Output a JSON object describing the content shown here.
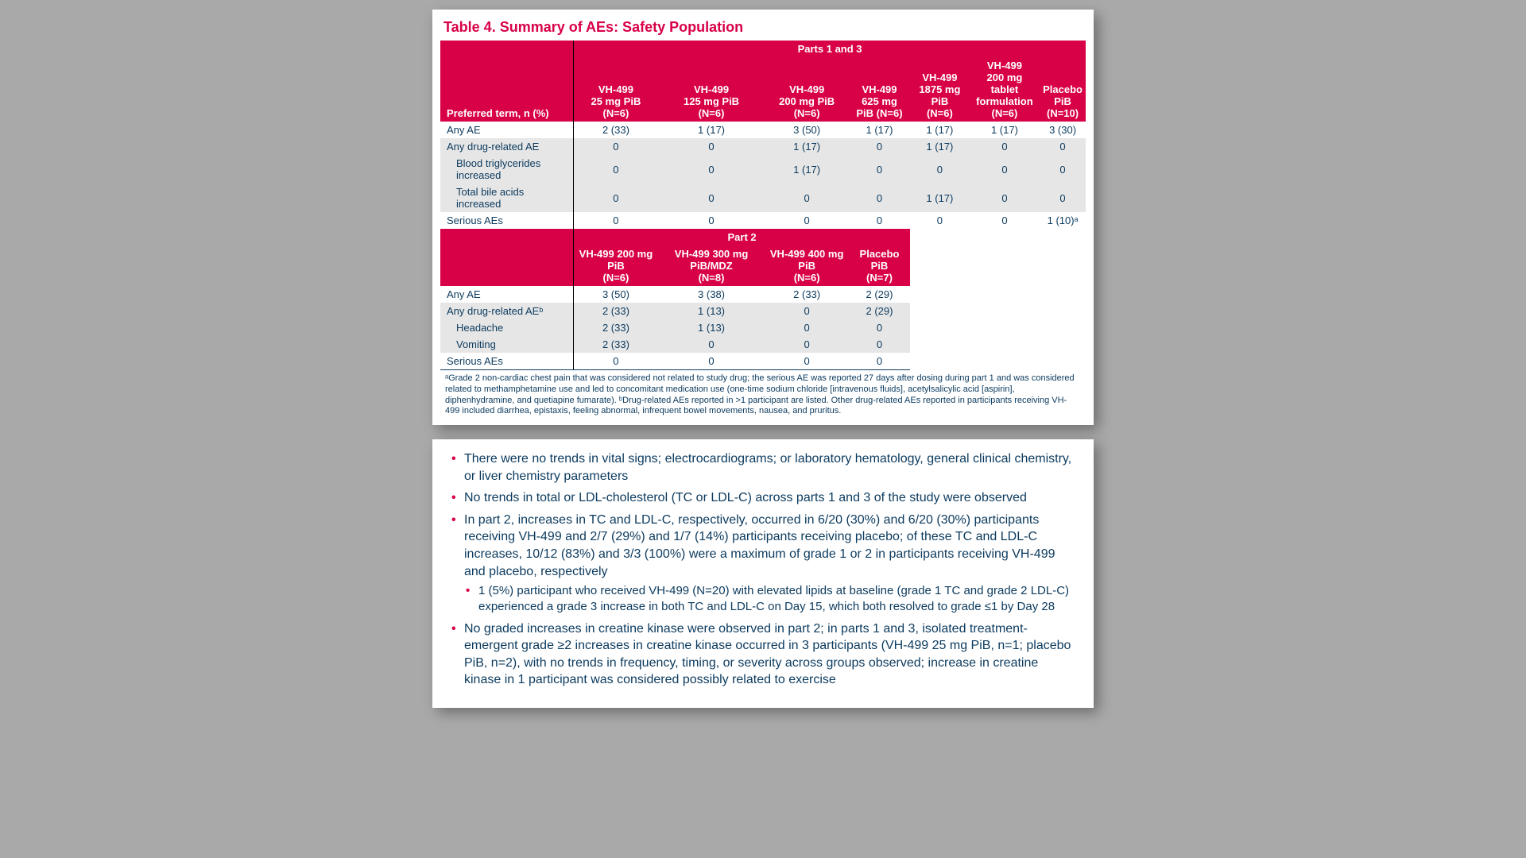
{
  "colors": {
    "accent": "#d80047",
    "text": "#0b3a5e",
    "page_bg": "#a9a9a9",
    "card_bg": "#ffffff",
    "row_alt": "#e6e6e6"
  },
  "title": "Table 4. Summary of AEs: Safety Population",
  "part13": {
    "span_label": "Parts 1 and 3",
    "rowhead": "Preferred term, n (%)",
    "cols": [
      {
        "l1": "VH-499",
        "l2": "25 mg PiB",
        "l3": "(N=6)"
      },
      {
        "l1": "VH-499",
        "l2": "125 mg PiB",
        "l3": "(N=6)"
      },
      {
        "l1": "VH-499",
        "l2": "200 mg PiB",
        "l3": "(N=6)"
      },
      {
        "l1": "VH-499",
        "l2": "625 mg",
        "l3": "PiB (N=6)"
      },
      {
        "l1": "VH-499",
        "l2": "1875 mg PiB",
        "l3": "(N=6)"
      },
      {
        "l1": "VH-499",
        "l2": "200 mg tablet",
        "l3": "formulation",
        "l4": "(N=6)"
      },
      {
        "l1": "Placebo",
        "l2": "PiB",
        "l3": "(N=10)"
      }
    ],
    "rows": [
      {
        "label": "Any AE",
        "cells": [
          "2 (33)",
          "1 (17)",
          "3 (50)",
          "1 (17)",
          "1 (17)",
          "1 (17)",
          "3 (30)"
        ],
        "bg": "white"
      },
      {
        "label": "Any drug-related AE",
        "cells": [
          "0",
          "0",
          "1 (17)",
          "0",
          "1 (17)",
          "0",
          "0"
        ],
        "bg": "gray"
      },
      {
        "label": "Blood triglycerides increased",
        "cells": [
          "0",
          "0",
          "1 (17)",
          "0",
          "0",
          "0",
          "0"
        ],
        "bg": "gray",
        "indent": true
      },
      {
        "label": "Total bile acids increased",
        "cells": [
          "0",
          "0",
          "0",
          "0",
          "1 (17)",
          "0",
          "0"
        ],
        "bg": "gray",
        "indent": true
      },
      {
        "label": "Serious AEs",
        "cells": [
          "0",
          "0",
          "0",
          "0",
          "0",
          "0",
          "1 (10)ᵃ"
        ],
        "bg": "white"
      }
    ]
  },
  "part2": {
    "span_label": "Part 2",
    "cols": [
      {
        "l1": "VH-499 200 mg PiB",
        "l2": "(N=6)"
      },
      {
        "l1": "VH-499 300 mg PiB/MDZ",
        "l2": "(N=8)"
      },
      {
        "l1": "VH-499 400 mg PiB",
        "l2": "(N=6)"
      },
      {
        "l1": "Placebo PiB",
        "l2": "(N=7)"
      }
    ],
    "rows": [
      {
        "label": "Any AE",
        "cells": [
          "3 (50)",
          "3 (38)",
          "2 (33)",
          "2 (29)"
        ],
        "bg": "white"
      },
      {
        "label": "Any drug-related AEᵇ",
        "cells": [
          "2 (33)",
          "1 (13)",
          "0",
          "2 (29)"
        ],
        "bg": "gray"
      },
      {
        "label": "Headache",
        "cells": [
          "2 (33)",
          "1 (13)",
          "0",
          "0"
        ],
        "bg": "gray",
        "indent": true
      },
      {
        "label": "Vomiting",
        "cells": [
          "2 (33)",
          "0",
          "0",
          "0"
        ],
        "bg": "gray",
        "indent": true
      },
      {
        "label": "Serious AEs",
        "cells": [
          "0",
          "0",
          "0",
          "0"
        ],
        "bg": "white",
        "last": true
      }
    ]
  },
  "footnote": "ᵃGrade 2 non-cardiac chest pain that was considered not related to study drug; the serious AE was reported 27 days after dosing during part 1 and was considered related to methamphetamine use and led to concomitant medication use (one-time sodium chloride [intravenous fluids], acetylsalicylic acid [aspirin], diphenhydramine, and quetiapine fumarate). ᵇDrug-related AEs reported in >1 participant are listed. Other drug-related AEs reported in participants receiving VH-499 included diarrhea, epistaxis, feeling abnormal, infrequent bowel movements, nausea, and pruritus.",
  "bullets": [
    {
      "text": "There were no trends in vital signs; electrocardiograms; or laboratory hematology, general clinical chemistry, or liver chemistry parameters"
    },
    {
      "text": "No trends in total or LDL-cholesterol (TC or LDL-C) across parts 1 and 3 of the study were observed"
    },
    {
      "text": "In part 2, increases in TC and LDL-C, respectively, occurred in 6/20 (30%) and 6/20 (30%) participants receiving VH-499 and 2/7 (29%) and 1/7 (14%) participants receiving placebo; of these TC and LDL-C increases, 10/12 (83%) and 3/3 (100%) were a maximum of grade 1 or 2 in participants receiving VH-499 and placebo, respectively",
      "sub": [
        "1 (5%) participant who received VH-499 (N=20) with elevated lipids at baseline (grade 1 TC and grade 2 LDL-C) experienced a grade 3 increase in both TC and LDL-C on Day 15, which both resolved to grade ≤1 by Day 28"
      ]
    },
    {
      "text": "No graded increases in creatine kinase were observed in part 2; in parts 1 and 3, isolated treatment-emergent grade ≥2 increases in creatine kinase occurred in 3 participants (VH-499 25 mg PiB, n=1; placebo PiB, n=2), with no trends in frequency, timing, or severity across groups observed; increase in creatine kinase in 1 participant was considered possibly related to exercise"
    }
  ]
}
